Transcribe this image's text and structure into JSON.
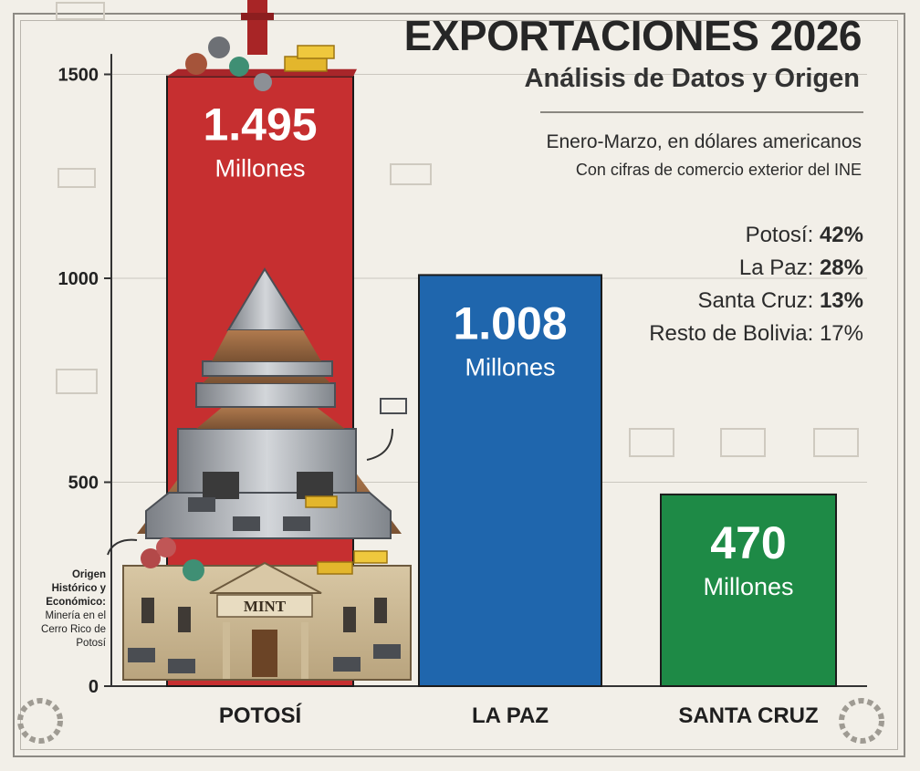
{
  "header": {
    "title": "EXPORTACIONES 2026",
    "subtitle": "Análisis de Datos y Origen",
    "description_1": "Enero-Marzo, en dólares americanos",
    "description_2": "Con cifras de comercio exterior del INE"
  },
  "shares": [
    {
      "label": "Potosí:",
      "value": "42%",
      "bold": true
    },
    {
      "label": "La Paz:",
      "value": "28%",
      "bold": true
    },
    {
      "label": "Santa Cruz:",
      "value": "13%",
      "bold": true
    },
    {
      "label": "Resto de Bolivia:",
      "value": "17%",
      "bold": false
    }
  ],
  "origin_note": {
    "bold_text": "Origen Histórico y Económico:",
    "text": "Minería en el Cerro Rico de Potosí"
  },
  "illustration": {
    "mint_sign": "MINT"
  },
  "colors": {
    "potosi": "#c62f30",
    "la_paz": "#1f66ad",
    "santa_cruz": "#1e8a46",
    "background": "#f2efe8"
  },
  "chart_data": {
    "type": "bar",
    "categories": [
      "POTOSÍ",
      "LA PAZ",
      "SANTA CRUZ"
    ],
    "values": [
      1495,
      1008,
      470
    ],
    "value_labels": [
      "1.495",
      "1.008",
      "470"
    ],
    "unit_label": "Millones",
    "yticks": [
      0,
      500,
      1000,
      1500
    ],
    "ylim": [
      0,
      1550
    ],
    "grid": true,
    "bar_colors": [
      "#c62f30",
      "#1f66ad",
      "#1e8a46"
    ]
  }
}
